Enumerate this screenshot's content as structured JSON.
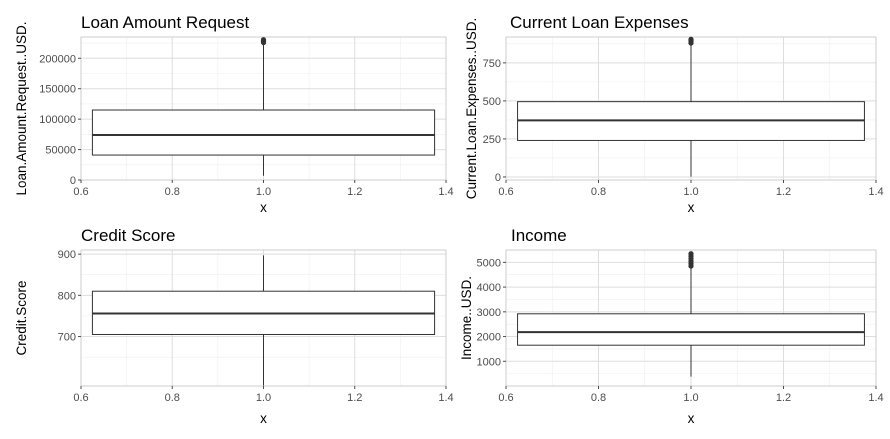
{
  "chart_data": [
    {
      "type": "boxplot",
      "title": "Loan Amount Request",
      "xlabel": "x",
      "ylabel": "Loan.Amount.Request..USD.",
      "xlim": [
        0.6,
        1.4
      ],
      "ylim": [
        0,
        235000
      ],
      "x_ticks": [
        0.6,
        0.8,
        1.0,
        1.2,
        1.4
      ],
      "x_tick_labels": [
        "0.6",
        "0.8",
        "1.0",
        "1.2",
        "1.4"
      ],
      "y_ticks": [
        0,
        50000,
        100000,
        150000,
        200000
      ],
      "y_tick_labels": [
        "0",
        "50000",
        "100000",
        "150000",
        "200000"
      ],
      "box": {
        "x": 1.0,
        "width": 0.75,
        "q1": 41000,
        "median": 74000,
        "q3": 115000,
        "whisker_low": 7000,
        "whisker_high": 225000
      },
      "outliers": [
        226000,
        227500,
        229000,
        230500
      ],
      "grid": true
    },
    {
      "type": "boxplot",
      "title": "Current Loan Expenses",
      "xlabel": "x",
      "ylabel": "Current.Loan.Expenses..USD.",
      "xlim": [
        0.6,
        1.4
      ],
      "ylim": [
        -20,
        920
      ],
      "x_ticks": [
        0.6,
        0.8,
        1.0,
        1.2,
        1.4
      ],
      "x_tick_labels": [
        "0.6",
        "0.8",
        "1.0",
        "1.2",
        "1.4"
      ],
      "y_ticks": [
        0,
        250,
        500,
        750
      ],
      "y_tick_labels": [
        "0",
        "250",
        "500",
        "750"
      ],
      "box": {
        "x": 1.0,
        "width": 0.75,
        "q1": 240,
        "median": 372,
        "q3": 495,
        "whisker_low": 2,
        "whisker_high": 876
      },
      "outliers": [
        880,
        888,
        896,
        905
      ],
      "grid": true
    },
    {
      "type": "boxplot",
      "title": "Credit Score",
      "xlabel": "x",
      "ylabel": "Credit.Score",
      "xlim": [
        0.6,
        1.4
      ],
      "ylim": [
        580,
        910
      ],
      "x_ticks": [
        0.6,
        0.8,
        1.0,
        1.2,
        1.4
      ],
      "x_tick_labels": [
        "0.6",
        "0.8",
        "1.0",
        "1.2",
        "1.4"
      ],
      "y_ticks": [
        700,
        800,
        900
      ],
      "y_tick_labels": [
        "700",
        "800",
        "900"
      ],
      "box": {
        "x": 1.0,
        "width": 0.75,
        "q1": 705,
        "median": 756,
        "q3": 810,
        "whisker_low": 581,
        "whisker_high": 897
      },
      "outliers": [],
      "grid": true
    },
    {
      "type": "boxplot",
      "title": "Income",
      "xlabel": "x",
      "ylabel": "Income..USD.",
      "xlim": [
        0.6,
        1.4
      ],
      "ylim": [
        0,
        5500
      ],
      "x_ticks": [
        0.6,
        0.8,
        1.0,
        1.2,
        1.4
      ],
      "x_tick_labels": [
        "0.6",
        "0.8",
        "1.0",
        "1.2",
        "1.4"
      ],
      "y_ticks": [
        1000,
        2000,
        3000,
        4000,
        5000
      ],
      "y_tick_labels": [
        "1000",
        "2000",
        "3000",
        "4000",
        "5000"
      ],
      "box": {
        "x": 1.0,
        "width": 0.75,
        "q1": 1650,
        "median": 2180,
        "q3": 2920,
        "whisker_low": 380,
        "whisker_high": 4800
      },
      "outliers": [
        4850,
        4950,
        5050,
        5150,
        5250,
        5350
      ],
      "grid": true
    }
  ]
}
